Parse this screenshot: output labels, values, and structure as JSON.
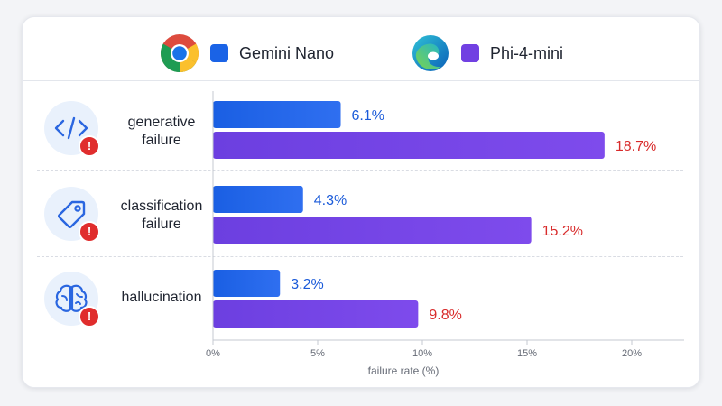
{
  "legend": {
    "series0": {
      "name": "Gemini Nano",
      "brand_icon": "chrome-logo-icon"
    },
    "series1": {
      "name": "Phi-4-mini",
      "brand_icon": "edge-logo-icon"
    }
  },
  "categories": [
    {
      "label": "generative failure",
      "icon": "code-icon"
    },
    {
      "label": "classification failure",
      "icon": "tag-icon"
    },
    {
      "label": "hallucination",
      "icon": "brain-icon"
    }
  ],
  "chart_data": {
    "type": "bar",
    "orientation": "horizontal",
    "categories": [
      "generative failure",
      "classification failure",
      "hallucination"
    ],
    "series": [
      {
        "name": "Gemini Nano",
        "values": [
          6.1,
          4.3,
          3.2
        ],
        "color": "#1a63e6"
      },
      {
        "name": "Phi-4-mini",
        "values": [
          18.7,
          15.2,
          9.8
        ],
        "color": "#7140e2"
      }
    ],
    "data_labels": [
      [
        "6.1%",
        "4.3%",
        "3.2%"
      ],
      [
        "18.7%",
        "15.2%",
        "9.8%"
      ]
    ],
    "label_colors": [
      "#1a5ad9",
      "#d82b2b"
    ],
    "xlabel": "failure rate (%)",
    "xlim": [
      0,
      22.5
    ],
    "xticks": [
      0,
      5,
      10,
      15,
      20
    ],
    "xtick_labels": [
      "0%",
      "5%",
      "10%",
      "15%",
      "20%"
    ],
    "legend_position": "top",
    "grid": false
  }
}
